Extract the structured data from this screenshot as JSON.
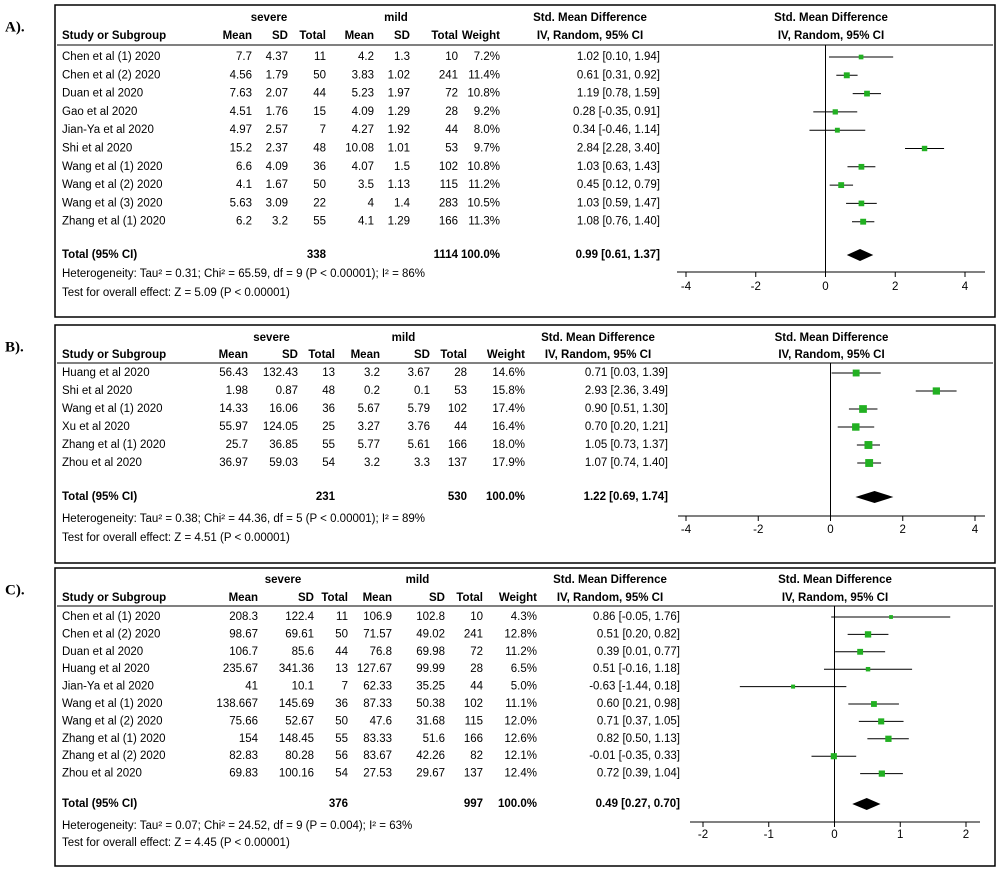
{
  "chart_data": [
    {
      "type": "forest",
      "panel_label": "A).",
      "group_headers": [
        "severe",
        "mild"
      ],
      "columns": [
        "Study or Subgroup",
        "Mean",
        "SD",
        "Total",
        "Mean",
        "SD",
        "Total",
        "Weight"
      ],
      "effect_header": "Std. Mean Difference",
      "effect_subheader": "IV, Random, 95% CI",
      "marker_color": "#22b022",
      "studies": [
        {
          "name": "Chen et al (1) 2020",
          "severe_mean": 7.7,
          "severe_sd": 4.37,
          "severe_total": 11,
          "mild_mean": 4.2,
          "mild_sd": 1.3,
          "mild_total": 10,
          "weight": 7.2,
          "weight_label": "7.2%",
          "smd": 1.02,
          "lower": 0.1,
          "upper": 1.94,
          "ci_label": "1.02 [0.10, 1.94]"
        },
        {
          "name": "Chen et al (2) 2020",
          "severe_mean": 4.56,
          "severe_sd": 1.79,
          "severe_total": 50,
          "mild_mean": 3.83,
          "mild_sd": 1.02,
          "mild_total": 241,
          "weight": 11.4,
          "weight_label": "11.4%",
          "smd": 0.61,
          "lower": 0.31,
          "upper": 0.92,
          "ci_label": "0.61 [0.31, 0.92]"
        },
        {
          "name": "Duan et al 2020",
          "severe_mean": 7.63,
          "severe_sd": 2.07,
          "severe_total": 44,
          "mild_mean": 5.23,
          "mild_sd": 1.97,
          "mild_total": 72,
          "weight": 10.8,
          "weight_label": "10.8%",
          "smd": 1.19,
          "lower": 0.78,
          "upper": 1.59,
          "ci_label": "1.19 [0.78, 1.59]"
        },
        {
          "name": "Gao et al 2020",
          "severe_mean": 4.51,
          "severe_sd": 1.76,
          "severe_total": 15,
          "mild_mean": 4.09,
          "mild_sd": 1.29,
          "mild_total": 28,
          "weight": 9.2,
          "weight_label": "9.2%",
          "smd": 0.28,
          "lower": -0.35,
          "upper": 0.91,
          "ci_label": "0.28 [-0.35, 0.91]"
        },
        {
          "name": "Jian-Ya et al 2020",
          "severe_mean": 4.97,
          "severe_sd": 2.57,
          "severe_total": 7,
          "mild_mean": 4.27,
          "mild_sd": 1.92,
          "mild_total": 44,
          "weight": 8.0,
          "weight_label": "8.0%",
          "smd": 0.34,
          "lower": -0.46,
          "upper": 1.14,
          "ci_label": "0.34 [-0.46, 1.14]"
        },
        {
          "name": "Shi et al 2020",
          "severe_mean": 15.2,
          "severe_sd": 2.37,
          "severe_total": 48,
          "mild_mean": 10.08,
          "mild_sd": 1.01,
          "mild_total": 53,
          "weight": 9.7,
          "weight_label": "9.7%",
          "smd": 2.84,
          "lower": 2.28,
          "upper": 3.4,
          "ci_label": "2.84 [2.28, 3.40]"
        },
        {
          "name": "Wang et al (1) 2020",
          "severe_mean": 6.6,
          "severe_sd": 4.09,
          "severe_total": 36,
          "mild_mean": 4.07,
          "mild_sd": 1.5,
          "mild_total": 102,
          "weight": 10.8,
          "weight_label": "10.8%",
          "smd": 1.03,
          "lower": 0.63,
          "upper": 1.43,
          "ci_label": "1.03 [0.63, 1.43]"
        },
        {
          "name": "Wang et al (2) 2020",
          "severe_mean": 4.1,
          "severe_sd": 1.67,
          "severe_total": 50,
          "mild_mean": 3.5,
          "mild_sd": 1.13,
          "mild_total": 115,
          "weight": 11.2,
          "weight_label": "11.2%",
          "smd": 0.45,
          "lower": 0.12,
          "upper": 0.79,
          "ci_label": "0.45 [0.12, 0.79]"
        },
        {
          "name": "Wang et al (3) 2020",
          "severe_mean": 5.63,
          "severe_sd": 3.09,
          "severe_total": 22,
          "mild_mean": 4,
          "mild_sd": 1.4,
          "mild_total": 283,
          "weight": 10.5,
          "weight_label": "10.5%",
          "smd": 1.03,
          "lower": 0.59,
          "upper": 1.47,
          "ci_label": "1.03 [0.59, 1.47]"
        },
        {
          "name": "Zhang et al (1) 2020",
          "severe_mean": 6.2,
          "severe_sd": 3.2,
          "severe_total": 55,
          "mild_mean": 4.1,
          "mild_sd": 1.29,
          "mild_total": 166,
          "weight": 11.3,
          "weight_label": "11.3%",
          "smd": 1.08,
          "lower": 0.76,
          "upper": 1.4,
          "ci_label": "1.08 [0.76, 1.40]"
        }
      ],
      "total": {
        "name": "Total (95% CI)",
        "severe_total": 338,
        "mild_total": 1114,
        "weight": 100,
        "weight_label": "100.0%",
        "smd": 0.99,
        "lower": 0.61,
        "upper": 1.37,
        "ci_label": "0.99 [0.61, 1.37]"
      },
      "heterogeneity": "Heterogeneity: Tau² = 0.31; Chi² = 65.59, df = 9 (P < 0.00001); I² = 86%",
      "overall_effect": "Test for overall effect: Z = 5.09 (P < 0.00001)",
      "xlim": [
        -4,
        4
      ],
      "xticks": [
        -4,
        -2,
        0,
        2,
        4
      ]
    },
    {
      "type": "forest",
      "panel_label": "B).",
      "group_headers": [
        "severe",
        "mild"
      ],
      "columns": [
        "Study or Subgroup",
        "Mean",
        "SD",
        "Total",
        "Mean",
        "SD",
        "Total",
        "Weight"
      ],
      "effect_header": "Std. Mean Difference",
      "effect_subheader": "IV, Random, 95% CI",
      "marker_color": "#22b022",
      "studies": [
        {
          "name": "Huang et al 2020",
          "severe_mean": 56.43,
          "severe_sd": 132.43,
          "severe_total": 13,
          "mild_mean": 3.2,
          "mild_sd": 3.67,
          "mild_total": 28,
          "weight": 14.6,
          "weight_label": "14.6%",
          "smd": 0.71,
          "lower": 0.03,
          "upper": 1.39,
          "ci_label": "0.71 [0.03, 1.39]"
        },
        {
          "name": "Shi et al 2020",
          "severe_mean": 1.98,
          "severe_sd": 0.87,
          "severe_total": 48,
          "mild_mean": 0.2,
          "mild_sd": 0.1,
          "mild_total": 53,
          "weight": 15.8,
          "weight_label": "15.8%",
          "smd": 2.93,
          "lower": 2.36,
          "upper": 3.49,
          "ci_label": "2.93 [2.36, 3.49]"
        },
        {
          "name": "Wang et al (1) 2020",
          "severe_mean": 14.33,
          "severe_sd": 16.06,
          "severe_total": 36,
          "mild_mean": 5.67,
          "mild_sd": 5.79,
          "mild_total": 102,
          "weight": 17.4,
          "weight_label": "17.4%",
          "smd": 0.9,
          "lower": 0.51,
          "upper": 1.3,
          "ci_label": "0.90 [0.51, 1.30]"
        },
        {
          "name": "Xu et al 2020",
          "severe_mean": 55.97,
          "severe_sd": 124.05,
          "severe_total": 25,
          "mild_mean": 3.27,
          "mild_sd": 3.76,
          "mild_total": 44,
          "weight": 16.4,
          "weight_label": "16.4%",
          "smd": 0.7,
          "lower": 0.2,
          "upper": 1.21,
          "ci_label": "0.70 [0.20, 1.21]"
        },
        {
          "name": "Zhang et al (1) 2020",
          "severe_mean": 25.7,
          "severe_sd": 36.85,
          "severe_total": 55,
          "mild_mean": 5.77,
          "mild_sd": 5.61,
          "mild_total": 166,
          "weight": 18.0,
          "weight_label": "18.0%",
          "smd": 1.05,
          "lower": 0.73,
          "upper": 1.37,
          "ci_label": "1.05 [0.73, 1.37]"
        },
        {
          "name": "Zhou et al 2020",
          "severe_mean": 36.97,
          "severe_sd": 59.03,
          "severe_total": 54,
          "mild_mean": 3.2,
          "mild_sd": 3.3,
          "mild_total": 137,
          "weight": 17.9,
          "weight_label": "17.9%",
          "smd": 1.07,
          "lower": 0.74,
          "upper": 1.4,
          "ci_label": "1.07 [0.74, 1.40]"
        }
      ],
      "total": {
        "name": "Total (95% CI)",
        "severe_total": 231,
        "mild_total": 530,
        "weight": 100,
        "weight_label": "100.0%",
        "smd": 1.22,
        "lower": 0.69,
        "upper": 1.74,
        "ci_label": "1.22 [0.69, 1.74]"
      },
      "heterogeneity": "Heterogeneity: Tau² = 0.38; Chi² = 44.36, df = 5 (P < 0.00001); I² = 89%",
      "overall_effect": "Test for overall effect: Z = 4.51 (P < 0.00001)",
      "xlim": [
        -4,
        4
      ],
      "xticks": [
        -4,
        -2,
        0,
        2,
        4
      ]
    },
    {
      "type": "forest",
      "panel_label": "C).",
      "group_headers": [
        "severe",
        "mild"
      ],
      "columns": [
        "Study or Subgroup",
        "Mean",
        "SD",
        "Total",
        "Mean",
        "SD",
        "Total",
        "Weight"
      ],
      "effect_header": "Std. Mean Difference",
      "effect_subheader": "IV, Random, 95% CI",
      "marker_color": "#22b022",
      "studies": [
        {
          "name": "Chen et al (1) 2020",
          "severe_mean": 208.3,
          "severe_sd": 122.4,
          "severe_total": 11,
          "mild_mean": 106.9,
          "mild_sd": 102.8,
          "mild_total": 10,
          "weight": 4.3,
          "weight_label": "4.3%",
          "smd": 0.86,
          "lower": -0.05,
          "upper": 1.76,
          "ci_label": "0.86 [-0.05, 1.76]"
        },
        {
          "name": "Chen et al (2) 2020",
          "severe_mean": 98.67,
          "severe_sd": 69.61,
          "severe_total": 50,
          "mild_mean": 71.57,
          "mild_sd": 49.02,
          "mild_total": 241,
          "weight": 12.8,
          "weight_label": "12.8%",
          "smd": 0.51,
          "lower": 0.2,
          "upper": 0.82,
          "ci_label": "0.51 [0.20, 0.82]"
        },
        {
          "name": "Duan et al 2020",
          "severe_mean": 106.7,
          "severe_sd": 85.6,
          "severe_total": 44,
          "mild_mean": 76.8,
          "mild_sd": 69.98,
          "mild_total": 72,
          "weight": 11.2,
          "weight_label": "11.2%",
          "smd": 0.39,
          "lower": 0.01,
          "upper": 0.77,
          "ci_label": "0.39 [0.01, 0.77]"
        },
        {
          "name": "Huang et al 2020",
          "severe_mean": 235.67,
          "severe_sd": 341.36,
          "severe_total": 13,
          "mild_mean": 127.67,
          "mild_sd": 99.99,
          "mild_total": 28,
          "weight": 6.5,
          "weight_label": "6.5%",
          "smd": 0.51,
          "lower": -0.16,
          "upper": 1.18,
          "ci_label": "0.51 [-0.16, 1.18]"
        },
        {
          "name": "Jian-Ya et al 2020",
          "severe_mean": 41,
          "severe_sd": 10.1,
          "severe_total": 7,
          "mild_mean": 62.33,
          "mild_sd": 35.25,
          "mild_total": 44,
          "weight": 5.0,
          "weight_label": "5.0%",
          "smd": -0.63,
          "lower": -1.44,
          "upper": 0.18,
          "ci_label": "-0.63 [-1.44, 0.18]"
        },
        {
          "name": "Wang et al (1) 2020",
          "severe_mean": 138.667,
          "severe_sd": 145.69,
          "severe_total": 36,
          "mild_mean": 87.33,
          "mild_sd": 50.38,
          "mild_total": 102,
          "weight": 11.1,
          "weight_label": "11.1%",
          "smd": 0.6,
          "lower": 0.21,
          "upper": 0.98,
          "ci_label": "0.60 [0.21, 0.98]"
        },
        {
          "name": "Wang et al (2) 2020",
          "severe_mean": 75.66,
          "severe_sd": 52.67,
          "severe_total": 50,
          "mild_mean": 47.6,
          "mild_sd": 31.68,
          "mild_total": 115,
          "weight": 12.0,
          "weight_label": "12.0%",
          "smd": 0.71,
          "lower": 0.37,
          "upper": 1.05,
          "ci_label": "0.71 [0.37, 1.05]"
        },
        {
          "name": "Zhang et al (1) 2020",
          "severe_mean": 154,
          "severe_sd": 148.45,
          "severe_total": 55,
          "mild_mean": 83.33,
          "mild_sd": 51.6,
          "mild_total": 166,
          "weight": 12.6,
          "weight_label": "12.6%",
          "smd": 0.82,
          "lower": 0.5,
          "upper": 1.13,
          "ci_label": "0.82 [0.50, 1.13]"
        },
        {
          "name": "Zhang et al (2) 2020",
          "severe_mean": 82.83,
          "severe_sd": 80.28,
          "severe_total": 56,
          "mild_mean": 83.67,
          "mild_sd": 42.26,
          "mild_total": 82,
          "weight": 12.1,
          "weight_label": "12.1%",
          "smd": -0.01,
          "lower": -0.35,
          "upper": 0.33,
          "ci_label": "-0.01 [-0.35, 0.33]"
        },
        {
          "name": "Zhou et al 2020",
          "severe_mean": 69.83,
          "severe_sd": 100.16,
          "severe_total": 54,
          "mild_mean": 27.53,
          "mild_sd": 29.67,
          "mild_total": 137,
          "weight": 12.4,
          "weight_label": "12.4%",
          "smd": 0.72,
          "lower": 0.39,
          "upper": 1.04,
          "ci_label": "0.72 [0.39, 1.04]"
        }
      ],
      "total": {
        "name": "Total (95% CI)",
        "severe_total": 376,
        "mild_total": 997,
        "weight": 100,
        "weight_label": "100.0%",
        "smd": 0.49,
        "lower": 0.27,
        "upper": 0.7,
        "ci_label": "0.49 [0.27, 0.70]"
      },
      "heterogeneity": "Heterogeneity: Tau² = 0.07; Chi² = 24.52, df = 9 (P = 0.004); I² = 63%",
      "overall_effect": "Test for overall effect: Z = 4.45 (P < 0.00001)",
      "xlim": [
        -2,
        2
      ],
      "xticks": [
        -2,
        -1,
        0,
        1,
        2
      ]
    }
  ]
}
